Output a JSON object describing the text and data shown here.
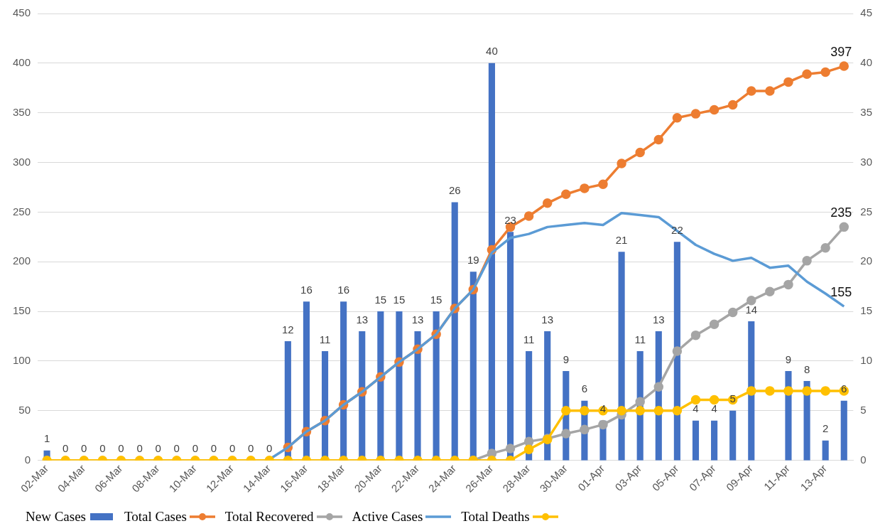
{
  "chart_data": {
    "type": "bar",
    "categories": [
      "02-Mar",
      null,
      "04-Mar",
      null,
      "06-Mar",
      null,
      "08-Mar",
      null,
      "10-Mar",
      null,
      "12-Mar",
      null,
      "14-Mar",
      null,
      "16-Mar",
      null,
      "18-Mar",
      null,
      "20-Mar",
      null,
      "22-Mar",
      null,
      "24-Mar",
      null,
      "26-Mar",
      null,
      "28-Mar",
      null,
      "30-Mar",
      null,
      "01-Apr",
      null,
      "03-Apr",
      null,
      "05-Apr",
      null,
      "07-Apr",
      null,
      "09-Apr",
      null,
      "11-Apr",
      null,
      "13-Apr",
      null
    ],
    "series": [
      {
        "name": "New Cases",
        "axis": "y2",
        "color": "#4472c4",
        "values": [
          1,
          0,
          0,
          0,
          0,
          0,
          0,
          0,
          0,
          0,
          0,
          0,
          0,
          12,
          16,
          11,
          16,
          13,
          15,
          15,
          13,
          15,
          26,
          19,
          40,
          23,
          11,
          13,
          9,
          6,
          4,
          21,
          11,
          13,
          22,
          4,
          4,
          5,
          14,
          null,
          9,
          8,
          2,
          6
        ],
        "value_labels": [
          "1",
          "0",
          "0",
          "0",
          "0",
          "0",
          "0",
          "0",
          "0",
          "0",
          "0",
          "0",
          "0",
          "12",
          "16",
          "11",
          "16",
          "13",
          "15",
          "15",
          "13",
          "15",
          "26",
          "19",
          "40",
          "23",
          "11",
          "13",
          "9",
          "6",
          "4",
          "21",
          "11",
          "13",
          "22",
          "4",
          "4",
          "5",
          "14",
          null,
          "9",
          "8",
          "2",
          "6"
        ]
      },
      {
        "name": "Total Cases",
        "type": "line",
        "marker": "circle",
        "color": "#ed7d31",
        "values": [
          null,
          null,
          null,
          null,
          null,
          null,
          null,
          null,
          null,
          null,
          null,
          null,
          null,
          13,
          29,
          40,
          56,
          69,
          84,
          99,
          112,
          127,
          153,
          172,
          212,
          235,
          246,
          259,
          268,
          274,
          278,
          299,
          310,
          323,
          345,
          349,
          353,
          358,
          372,
          372,
          381,
          389,
          391,
          397
        ],
        "value_labels": [
          null,
          null,
          null,
          null,
          null,
          null,
          null,
          null,
          null,
          null,
          null,
          null,
          null,
          null,
          null,
          null,
          null,
          null,
          null,
          null,
          null,
          null,
          null,
          null,
          null,
          null,
          null,
          null,
          null,
          null,
          null,
          null,
          null,
          null,
          null,
          null,
          null,
          null,
          null,
          null,
          null,
          null,
          null,
          "397"
        ]
      },
      {
        "name": "Total Recovered",
        "type": "line",
        "marker": "circle",
        "color": "#a5a5a5",
        "values": [
          null,
          null,
          null,
          null,
          null,
          null,
          null,
          null,
          null,
          null,
          null,
          null,
          null,
          null,
          null,
          null,
          null,
          null,
          null,
          null,
          null,
          null,
          null,
          0,
          7,
          12,
          19,
          22,
          27,
          31,
          36,
          46,
          59,
          74,
          110,
          126,
          137,
          149,
          161,
          170,
          177,
          201,
          214,
          235
        ],
        "value_labels": [
          null,
          null,
          null,
          null,
          null,
          null,
          null,
          null,
          null,
          null,
          null,
          null,
          null,
          null,
          null,
          null,
          null,
          null,
          null,
          null,
          null,
          null,
          null,
          null,
          null,
          null,
          null,
          null,
          null,
          null,
          null,
          null,
          null,
          null,
          null,
          null,
          null,
          null,
          null,
          null,
          null,
          null,
          null,
          "235"
        ]
      },
      {
        "name": "Active Cases",
        "type": "line",
        "marker": "none",
        "color": "#5b9bd5",
        "values": [
          null,
          null,
          null,
          null,
          null,
          null,
          null,
          null,
          null,
          null,
          null,
          null,
          1,
          13,
          29,
          40,
          56,
          69,
          84,
          99,
          112,
          127,
          153,
          172,
          209,
          224,
          228,
          235,
          237,
          239,
          237,
          249,
          247,
          245,
          231,
          217,
          208,
          201,
          204,
          194,
          196,
          180,
          168,
          155
        ],
        "value_labels": [
          null,
          null,
          null,
          null,
          null,
          null,
          null,
          null,
          null,
          null,
          null,
          null,
          null,
          null,
          null,
          null,
          null,
          null,
          null,
          null,
          null,
          null,
          null,
          null,
          null,
          null,
          null,
          null,
          null,
          null,
          null,
          null,
          null,
          null,
          null,
          null,
          null,
          null,
          null,
          null,
          null,
          null,
          null,
          "155"
        ]
      },
      {
        "name": "Total Deaths",
        "type": "line",
        "marker": "circle",
        "color": "#ffc000",
        "values": [
          0,
          0,
          0,
          0,
          0,
          0,
          0,
          0,
          0,
          0,
          0,
          0,
          0,
          0,
          0,
          0,
          0,
          0,
          0,
          0,
          0,
          0,
          0,
          0,
          0,
          0,
          11,
          21,
          50,
          50,
          50,
          50,
          50,
          50,
          50,
          61,
          61,
          61,
          70,
          70,
          70,
          70,
          70,
          70
        ]
      }
    ],
    "ylim": [
      0,
      450
    ],
    "yticks": [
      0,
      50,
      100,
      150,
      200,
      250,
      300,
      350,
      400,
      450
    ],
    "y2lim": [
      0,
      45
    ],
    "y2ticks": [
      0,
      5,
      10,
      15,
      20,
      25,
      30,
      35,
      40,
      45
    ],
    "grid": "y",
    "legend": "bottom"
  }
}
